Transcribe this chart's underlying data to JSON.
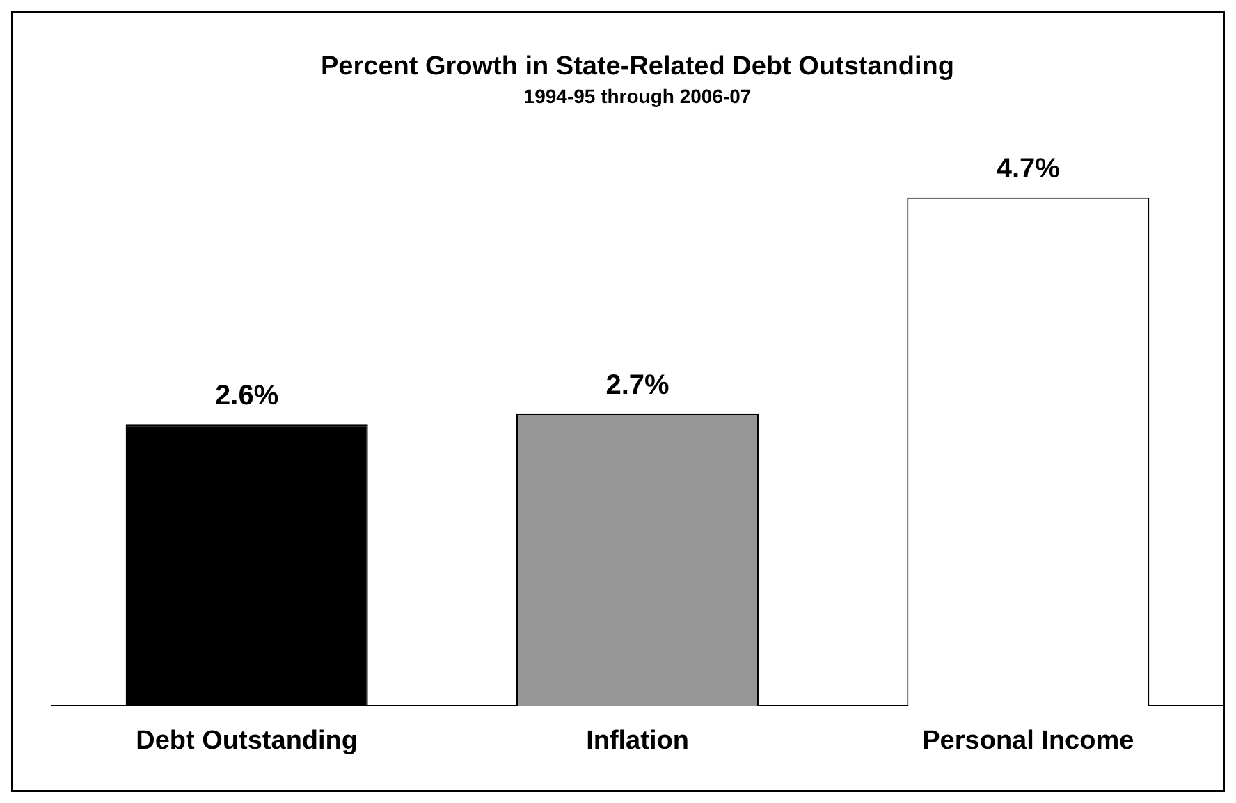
{
  "chart_data": {
    "type": "bar",
    "title": "Percent Growth in State-Related Debt Outstanding",
    "subtitle": "1994-95 through 2006-07",
    "categories": [
      "Debt Outstanding",
      "Inflation",
      "Personal Income"
    ],
    "values": [
      2.6,
      2.7,
      4.7
    ],
    "colors": [
      "#000000",
      "#969696",
      "#ffffff"
    ],
    "value_labels": [
      "2.6%",
      "2.7%",
      "4.7%"
    ],
    "grid": false,
    "legend": false
  }
}
